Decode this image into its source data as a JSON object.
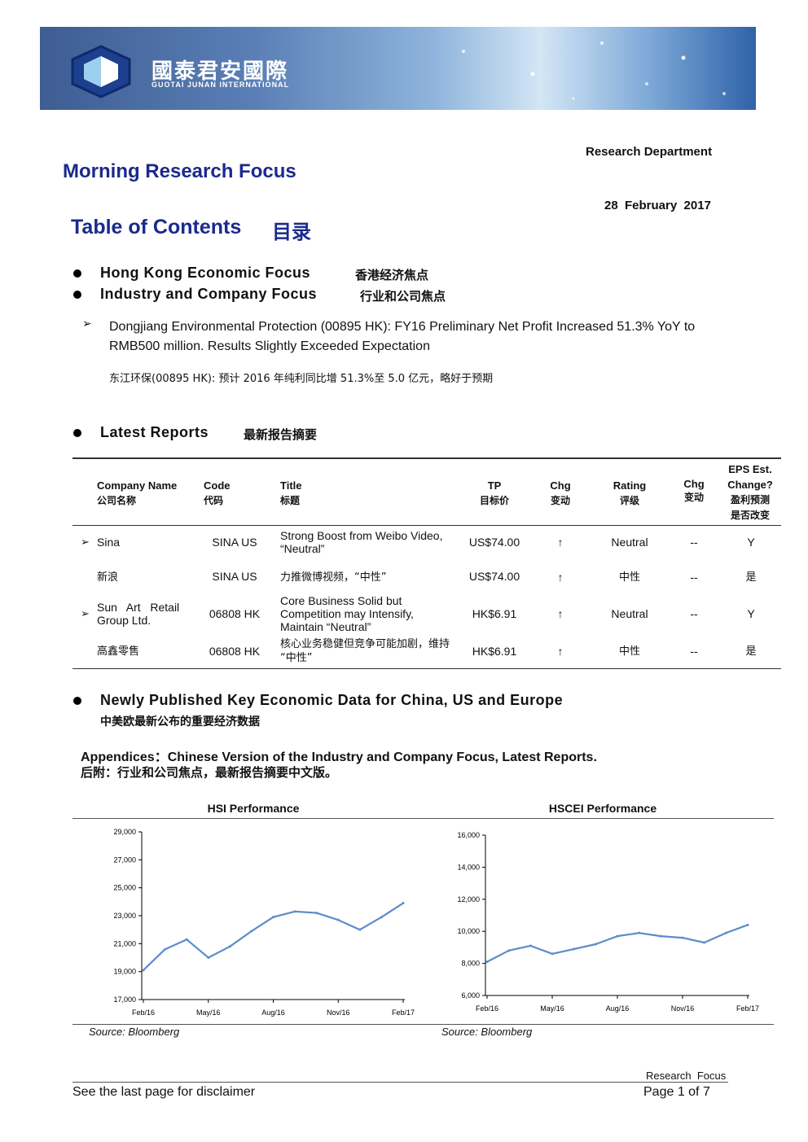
{
  "banner": {
    "company_cn": "國泰君安國際",
    "company_en": "GUOTAI JUNAN INTERNATIONAL"
  },
  "header": {
    "department": "Research Department",
    "title": "Morning Research Focus",
    "date": "28  February  2017"
  },
  "toc": {
    "title": "Table of Contents",
    "title_cn": "目录",
    "items": [
      {
        "en": "Hong Kong Economic Focus",
        "cn": "香港经济焦点"
      },
      {
        "en": "Industry and Company Focus",
        "cn": "行业和公司焦点"
      }
    ],
    "sub_item": {
      "en_line1": "Dongjiang Environmental Protection (00895 HK): FY16 Preliminary Net Profit Increased 51.3% YoY to",
      "en_line2": "RMB500 million. Results Slightly Exceeded Expectation",
      "cn": "东江环保(00895 HK):  预计 2016 年纯利同比增 51.3%至 5.0 亿元，略好于预期"
    }
  },
  "latest_reports": {
    "heading_en": "Latest Reports",
    "heading_cn": "最新报告摘要",
    "columns": {
      "company": {
        "en": "Company Name",
        "cn": "公司名称"
      },
      "code": {
        "en": "Code",
        "cn": "代码"
      },
      "title": {
        "en": "Title",
        "cn": "标题"
      },
      "tp": {
        "en": "TP",
        "cn": "目标价"
      },
      "chg": {
        "en": "Chg",
        "cn": "变动"
      },
      "rating": {
        "en": "Rating",
        "cn": "评级"
      },
      "chg2": {
        "en": "Chg",
        "cn": "变动"
      },
      "eps": {
        "l1": "EPS Est.",
        "l2": "Change?",
        "l3": "盈利预测",
        "l4": "是否改变"
      }
    },
    "rows": [
      {
        "company": "Sina",
        "code": "SINA US",
        "title_l1": "Strong Boost from Weibo Video,",
        "title_l2": "“Neutral”",
        "tp": "US$74.00",
        "chg": "↑",
        "rating": "Neutral",
        "chg2": "--",
        "eps": "Y"
      },
      {
        "company": "新浪",
        "code": "SINA US",
        "title_l1": "力推微博视频，“中性”",
        "tp": "US$74.00",
        "chg": "↑",
        "rating": "中性",
        "chg2": "--",
        "eps": "是"
      },
      {
        "company_l1": "Sun   Art   Retail",
        "company_l2": "Group Ltd.",
        "code": "06808 HK",
        "title_l1": "Core Business Solid but",
        "title_l2": "Competition may Intensify,",
        "title_l3": "Maintain “Neutral”",
        "tp": "HK$6.91",
        "chg": "↑",
        "rating": "Neutral",
        "chg2": "--",
        "eps": "Y"
      },
      {
        "company": "高鑫零售",
        "code": "06808 HK",
        "title_l1": "核心业务稳健但竞争可能加剧，维持",
        "title_l2": "“中性”",
        "tp": "HK$6.91",
        "chg": "↑",
        "rating": "中性",
        "chg2": "--",
        "eps": "是"
      }
    ]
  },
  "econ": {
    "heading_en": "Newly Published Key Economic Data for China, US and Europe",
    "heading_cn": "中美欧最新公布的重要经济数据"
  },
  "appendix": {
    "en": "Appendices：Chinese Version of the Industry and Company Focus, Latest Reports.",
    "cn": "后附：行业和公司焦点，最新报告摘要中文版。"
  },
  "chart_data": [
    {
      "type": "line",
      "title": "HSI Performance",
      "source": "Source: Bloomberg",
      "x": [
        "Feb/16",
        "Mar/16",
        "Apr/16",
        "May/16",
        "Jun/16",
        "Jul/16",
        "Aug/16",
        "Sep/16",
        "Oct/16",
        "Nov/16",
        "Dec/16",
        "Jan/17",
        "Feb/17"
      ],
      "xticks": [
        "Feb/16",
        "May/16",
        "Aug/16",
        "Nov/16",
        "Feb/17"
      ],
      "yticks": [
        "17,000",
        "19,000",
        "21,000",
        "23,000",
        "25,000",
        "27,000",
        "29,000"
      ],
      "ylim": [
        17000,
        29000
      ],
      "series": [
        {
          "values": [
            19100,
            20600,
            21300,
            20000,
            20800,
            21900,
            22900,
            23300,
            23200,
            22700,
            22000,
            22900,
            23900
          ],
          "color": "#5b8ccc"
        }
      ]
    },
    {
      "type": "line",
      "title": "HSCEI Performance",
      "source": "Source: Bloomberg",
      "x": [
        "Feb/16",
        "Mar/16",
        "Apr/16",
        "May/16",
        "Jun/16",
        "Jul/16",
        "Aug/16",
        "Sep/16",
        "Oct/16",
        "Nov/16",
        "Dec/16",
        "Jan/17",
        "Feb/17"
      ],
      "xticks": [
        "Feb/16",
        "May/16",
        "Aug/16",
        "Nov/16",
        "Feb/17"
      ],
      "yticks": [
        "6,000",
        "8,000",
        "10,000",
        "12,000",
        "14,000",
        "16,000"
      ],
      "ylim": [
        6000,
        16000
      ],
      "series": [
        {
          "values": [
            8100,
            8800,
            9100,
            8600,
            8900,
            9200,
            9700,
            9900,
            9700,
            9600,
            9300,
            9900,
            10400
          ],
          "color": "#5b8ccc"
        }
      ]
    }
  ],
  "footer": {
    "right_label": "Research  Focus",
    "disclaimer": "See the last page for disclaimer",
    "page": "Page 1 of 7"
  }
}
